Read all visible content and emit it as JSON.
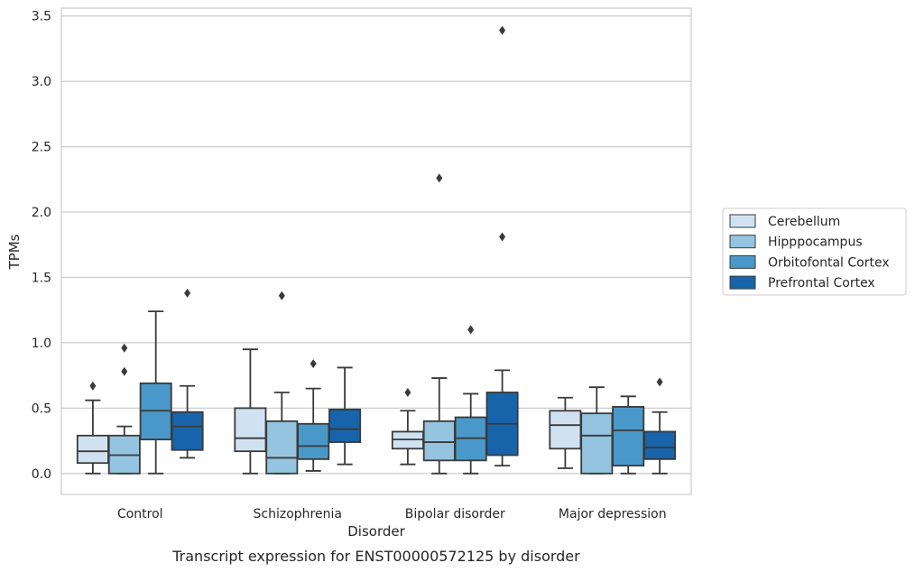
{
  "chart_data": {
    "type": "box",
    "title": "",
    "caption": "Transcript expression for ENST00000572125 by disorder",
    "xlabel": "Disorder",
    "ylabel": "TPMs",
    "ylim": [
      -0.16,
      3.56
    ],
    "yticks": [
      "0.0",
      "0.5",
      "1.0",
      "1.5",
      "2.0",
      "2.5",
      "3.0",
      "3.5"
    ],
    "grid": "horizontal",
    "legend_position": "right",
    "categories": [
      "Control",
      "Schizophrenia",
      "Bipolar disorder",
      "Major depression"
    ],
    "series": [
      {
        "name": "Cerebellum",
        "color": "#d0e1f2",
        "boxes": [
          {
            "whislo": 0.0,
            "q1": 0.08,
            "med": 0.17,
            "q3": 0.29,
            "whishi": 0.56,
            "fliers": [
              0.67
            ]
          },
          {
            "whislo": 0.0,
            "q1": 0.17,
            "med": 0.27,
            "q3": 0.5,
            "whishi": 0.95,
            "fliers": []
          },
          {
            "whislo": 0.07,
            "q1": 0.19,
            "med": 0.26,
            "q3": 0.32,
            "whishi": 0.48,
            "fliers": [
              0.62
            ]
          },
          {
            "whislo": 0.04,
            "q1": 0.19,
            "med": 0.37,
            "q3": 0.48,
            "whishi": 0.58,
            "fliers": []
          }
        ]
      },
      {
        "name": "Hipppocampus",
        "color": "#94c4df",
        "boxes": [
          {
            "whislo": 0.0,
            "q1": 0.0,
            "med": 0.14,
            "q3": 0.29,
            "whishi": 0.36,
            "fliers": [
              0.78,
              0.96
            ]
          },
          {
            "whislo": 0.0,
            "q1": 0.0,
            "med": 0.12,
            "q3": 0.4,
            "whishi": 0.62,
            "fliers": [
              1.36
            ]
          },
          {
            "whislo": 0.0,
            "q1": 0.1,
            "med": 0.24,
            "q3": 0.4,
            "whishi": 0.73,
            "fliers": [
              2.26
            ]
          },
          {
            "whislo": 0.0,
            "q1": 0.0,
            "med": 0.29,
            "q3": 0.46,
            "whishi": 0.66,
            "fliers": []
          }
        ]
      },
      {
        "name": "Orbitofontal Cortex",
        "color": "#4a98c9",
        "boxes": [
          {
            "whislo": 0.0,
            "q1": 0.26,
            "med": 0.48,
            "q3": 0.69,
            "whishi": 1.24,
            "fliers": []
          },
          {
            "whislo": 0.02,
            "q1": 0.11,
            "med": 0.21,
            "q3": 0.38,
            "whishi": 0.65,
            "fliers": [
              0.84
            ]
          },
          {
            "whislo": 0.0,
            "q1": 0.1,
            "med": 0.27,
            "q3": 0.43,
            "whishi": 0.61,
            "fliers": [
              1.1
            ]
          },
          {
            "whislo": 0.0,
            "q1": 0.06,
            "med": 0.33,
            "q3": 0.51,
            "whishi": 0.59,
            "fliers": []
          }
        ]
      },
      {
        "name": "Prefrontal Cortex",
        "color": "#1764ab",
        "boxes": [
          {
            "whislo": 0.12,
            "q1": 0.18,
            "med": 0.36,
            "q3": 0.47,
            "whishi": 0.67,
            "fliers": [
              1.38
            ]
          },
          {
            "whislo": 0.07,
            "q1": 0.24,
            "med": 0.34,
            "q3": 0.49,
            "whishi": 0.81,
            "fliers": []
          },
          {
            "whislo": 0.06,
            "q1": 0.14,
            "med": 0.38,
            "q3": 0.62,
            "whishi": 0.79,
            "fliers": [
              1.81,
              3.39
            ]
          },
          {
            "whislo": 0.0,
            "q1": 0.11,
            "med": 0.2,
            "q3": 0.32,
            "whishi": 0.47,
            "fliers": [
              0.7
            ]
          }
        ]
      }
    ]
  }
}
